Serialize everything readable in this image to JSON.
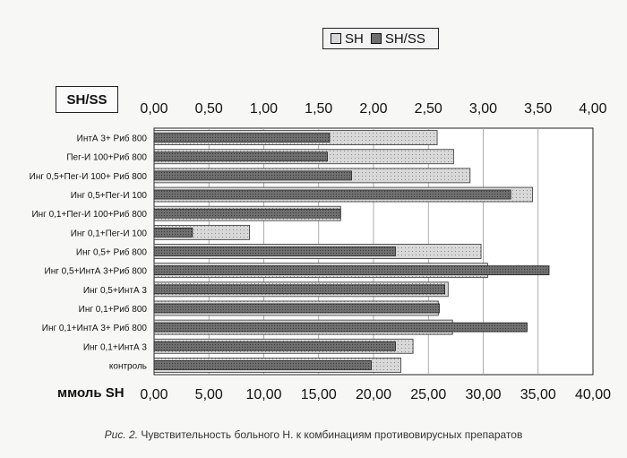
{
  "legend": {
    "sh_label": "SH",
    "shss_label": "SH/SS"
  },
  "colors": {
    "sh": "#d8d8d8",
    "shss": "#6f6f6f",
    "grid": "#9a9a9a",
    "border": "#222222"
  },
  "chart_data": {
    "type": "bar",
    "orientation": "horizontal",
    "categories": [
      "ИнтА 3+ Риб 800",
      "Пег-И 100+Риб 800",
      "Инг 0,5+Пег-И 100+ Риб 800",
      "Инг 0,5+Пег-И 100",
      "Инг 0,1+Пег-И 100+Риб 800",
      "Инг 0,1+Пег-И 100",
      "Инг 0,5+ Риб 800",
      "Инг 0,5+ИнтА 3+Риб 800",
      "Инг 0,5+ИнтА 3",
      "Инг 0,1+Риб 800",
      "Инг 0,1+ИнтА 3+ Риб 800",
      "Инг 0,1+ИнтА 3",
      "контроль"
    ],
    "series": [
      {
        "name": "SH",
        "axis": "bottom",
        "values": [
          25.8,
          27.3,
          28.8,
          34.5,
          17.0,
          8.7,
          29.8,
          30.4,
          26.8,
          25.9,
          27.2,
          23.6,
          22.5
        ]
      },
      {
        "name": "SH/SS",
        "axis": "top",
        "values": [
          1.6,
          1.58,
          1.8,
          3.25,
          1.7,
          0.35,
          2.2,
          3.6,
          2.65,
          2.6,
          3.4,
          2.2,
          1.98
        ]
      }
    ],
    "top_axis": {
      "title": "SH/SS",
      "ticks": [
        "0,00",
        "0,50",
        "1,00",
        "1,50",
        "2,00",
        "2,50",
        "3,00",
        "3,50",
        "4,00"
      ],
      "range": [
        0,
        4
      ]
    },
    "bottom_axis": {
      "title": "ммоль SH",
      "ticks": [
        "0,00",
        "5,00",
        "10,00",
        "15,00",
        "20,00",
        "25,00",
        "30,00",
        "35,00",
        "40,00"
      ],
      "range": [
        0,
        40
      ]
    },
    "legend_position": "top",
    "grid": true
  },
  "caption": {
    "prefix": "Рис. 2.",
    "text": "Чувствительность больного Н. к комбинациям противовирусных препаратов"
  }
}
